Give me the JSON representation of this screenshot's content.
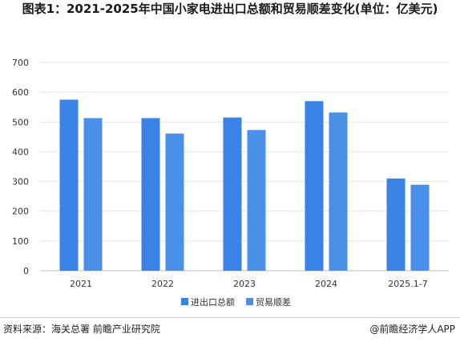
{
  "title": "图表1：2021-2025年中国小家电进出口总额和贸易顺差变化(单位：亿美元)",
  "source": "资料来源：海关总署 前瞻产业研究院",
  "credit": "@前瞻经济学人APP",
  "chart_data": {
    "type": "bar",
    "categories": [
      "2021",
      "2022",
      "2023",
      "2024",
      "2025.1-7"
    ],
    "series": [
      {
        "name": "进出口总额",
        "values": [
          575,
          513,
          515,
          570,
          310
        ],
        "color": "#3b82e6"
      },
      {
        "name": "贸易顺差",
        "values": [
          513,
          461,
          473,
          532,
          289
        ],
        "color": "#4a90e8"
      }
    ],
    "ylim": [
      0,
      700
    ],
    "yticks": [
      0,
      100,
      200,
      300,
      400,
      500,
      600,
      700
    ],
    "grid": true,
    "legend": "bottom"
  }
}
